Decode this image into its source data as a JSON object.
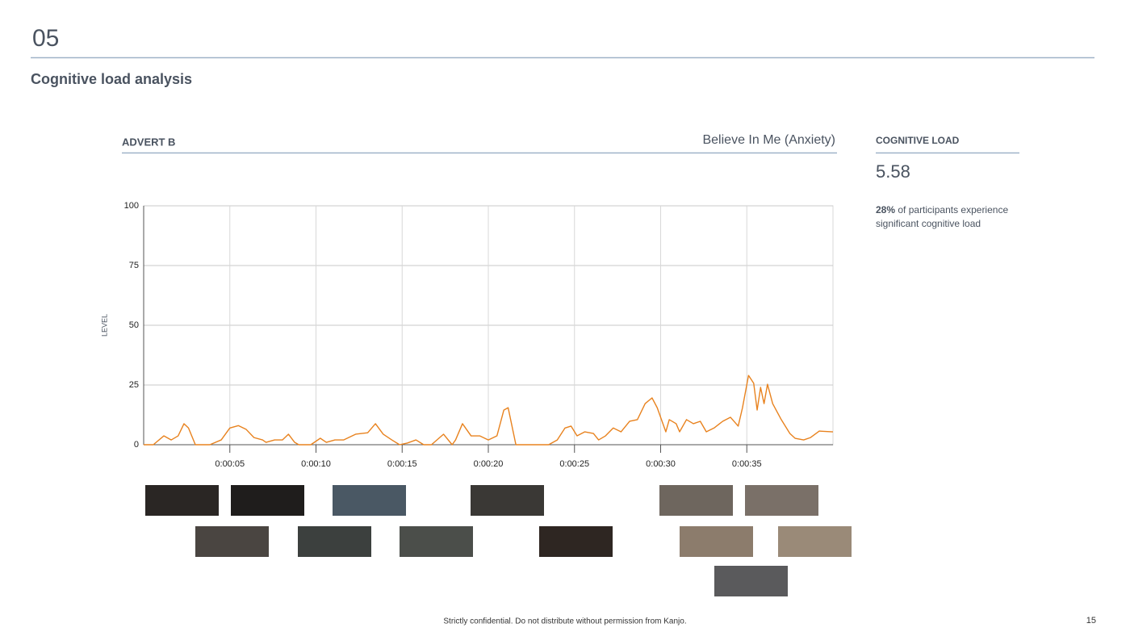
{
  "page": {
    "section_number": "05",
    "heading": "Cognitive load analysis",
    "advert_label": "ADVERT B",
    "advert_title": "Believe In Me (Anxiety)",
    "stat_label": "COGNITIVE LOAD",
    "stat_value": "5.58",
    "stat_note_bold": "28%",
    "stat_note": "of participants experience significant cognitive load",
    "footer": "Strictly confidential. Do not distribute without permission from Kanjo.",
    "page_number": "15"
  },
  "chart_data": {
    "type": "line",
    "y_label": "LEVEL",
    "color": "#e8821e",
    "grid": true,
    "xlim": [
      0,
      40
    ],
    "ylim": [
      0,
      100
    ],
    "yticks": [
      0,
      25,
      50,
      75,
      100
    ],
    "xticks": [
      {
        "value": 5,
        "label": "0:00:05"
      },
      {
        "value": 10,
        "label": "0:00:10"
      },
      {
        "value": 15,
        "label": "0:00:15"
      },
      {
        "value": 20,
        "label": "0:00:20"
      },
      {
        "value": 25,
        "label": "0:00:25"
      },
      {
        "value": 30,
        "label": "0:00:30"
      },
      {
        "value": 35,
        "label": "0:00:35"
      }
    ],
    "x": [
      0,
      0.56,
      1.17,
      1.6,
      2.0,
      2.34,
      2.6,
      3.0,
      3.84,
      4.5,
      5.0,
      5.5,
      5.95,
      6.4,
      6.9,
      7.1,
      7.6,
      8.05,
      8.4,
      8.76,
      9.0,
      9.7,
      10.25,
      10.6,
      11.1,
      11.6,
      12.3,
      13.0,
      13.45,
      13.9,
      14.4,
      14.85,
      15.3,
      15.8,
      16.25,
      16.7,
      17.4,
      17.9,
      18.1,
      18.5,
      19.0,
      19.5,
      20.0,
      20.5,
      20.9,
      21.15,
      21.6,
      22.1,
      23.5,
      24.0,
      24.45,
      24.8,
      25.15,
      25.6,
      26.1,
      26.4,
      26.8,
      27.25,
      27.7,
      28.2,
      28.65,
      29.1,
      29.5,
      29.8,
      30.3,
      30.5,
      30.9,
      31.1,
      31.5,
      31.9,
      32.3,
      32.65,
      33.1,
      33.6,
      34.05,
      34.5,
      34.75,
      35.1,
      35.4,
      35.6,
      35.8,
      36.0,
      36.2,
      36.5,
      37.0,
      37.5,
      37.8,
      38.3,
      38.7,
      39.2,
      40.0
    ],
    "values": [
      0,
      0,
      3.7,
      2,
      3.7,
      8.8,
      7,
      0,
      0,
      2,
      7,
      8,
      6.4,
      3,
      2,
      1,
      2,
      2,
      4.4,
      1,
      0,
      0,
      2.7,
      1,
      2,
      2,
      4.4,
      5,
      8.8,
      4.4,
      2,
      0,
      0.7,
      2,
      0,
      0,
      4.4,
      0,
      2,
      8.8,
      3.7,
      3.7,
      2,
      3.7,
      14.5,
      15.5,
      0,
      0,
      0,
      2,
      7,
      7.8,
      3.7,
      5.4,
      4.7,
      2,
      3.7,
      7,
      5.4,
      9.8,
      10.5,
      17.2,
      19.6,
      15.5,
      5.4,
      10.5,
      8.8,
      5.4,
      10.5,
      8.8,
      9.8,
      5.4,
      7,
      9.8,
      11.5,
      7.8,
      15.5,
      29,
      25.7,
      14.5,
      24,
      17.2,
      25.3,
      17.2,
      10.5,
      4.7,
      2.7,
      2,
      3,
      5.7,
      5.4
    ]
  }
}
